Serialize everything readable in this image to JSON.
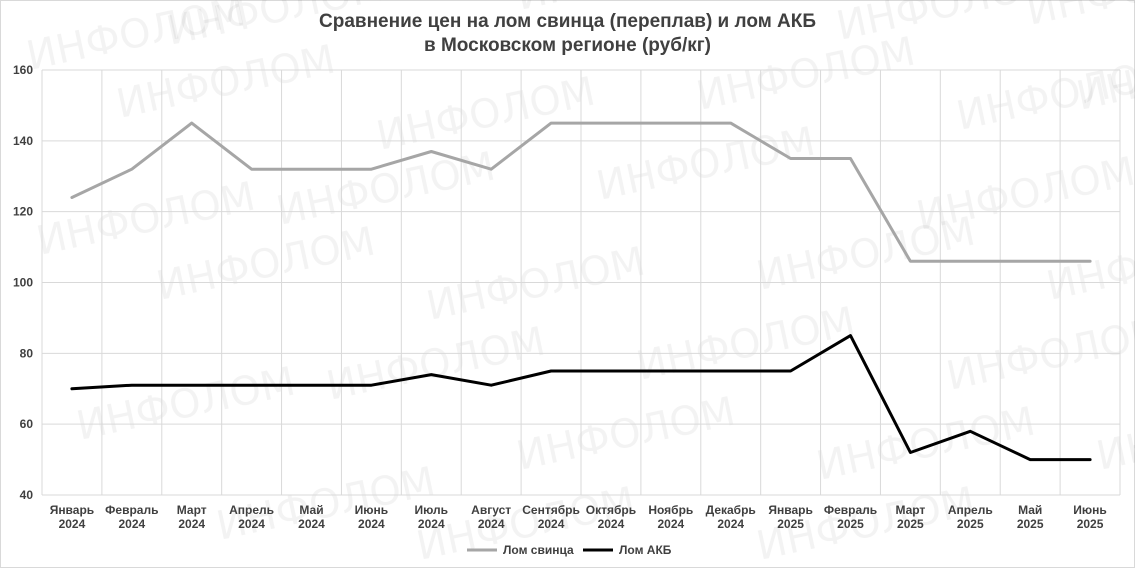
{
  "chart_data": {
    "type": "line",
    "title_lines": [
      "Сравнение цен на лом свинца (переплав) и лом АКБ",
      "в Московском регионе (руб/кг)"
    ],
    "watermark": "ИНФОЛОМ",
    "categories": [
      [
        "Январь",
        "2024"
      ],
      [
        "Февраль",
        "2024"
      ],
      [
        "Март",
        "2024"
      ],
      [
        "Апрель",
        "2024"
      ],
      [
        "Май",
        "2024"
      ],
      [
        "Июнь",
        "2024"
      ],
      [
        "Июль",
        "2024"
      ],
      [
        "Август",
        "2024"
      ],
      [
        "Сентябрь",
        "2024"
      ],
      [
        "Октябрь",
        "2024"
      ],
      [
        "Ноябрь",
        "2024"
      ],
      [
        "Декабрь",
        "2024"
      ],
      [
        "Январь",
        "2025"
      ],
      [
        "Февраль",
        "2025"
      ],
      [
        "Март",
        "2025"
      ],
      [
        "Апрель",
        "2025"
      ],
      [
        "Май",
        "2025"
      ],
      [
        "Июнь",
        "2025"
      ]
    ],
    "ylim": [
      40,
      160
    ],
    "yticks": [
      40,
      60,
      80,
      100,
      120,
      140,
      160
    ],
    "grid": true,
    "legend_position": "bottom",
    "series": [
      {
        "name": "Лом свинца",
        "color": "#a6a6a6",
        "values": [
          124,
          132,
          145,
          132,
          132,
          132,
          137,
          132,
          145,
          145,
          145,
          145,
          135,
          135,
          106,
          106,
          106,
          106
        ]
      },
      {
        "name": "Лом АКБ",
        "color": "#000000",
        "values": [
          70,
          71,
          71,
          71,
          71,
          71,
          74,
          71,
          75,
          75,
          75,
          75,
          75,
          85,
          52,
          58,
          50,
          50
        ]
      }
    ]
  }
}
